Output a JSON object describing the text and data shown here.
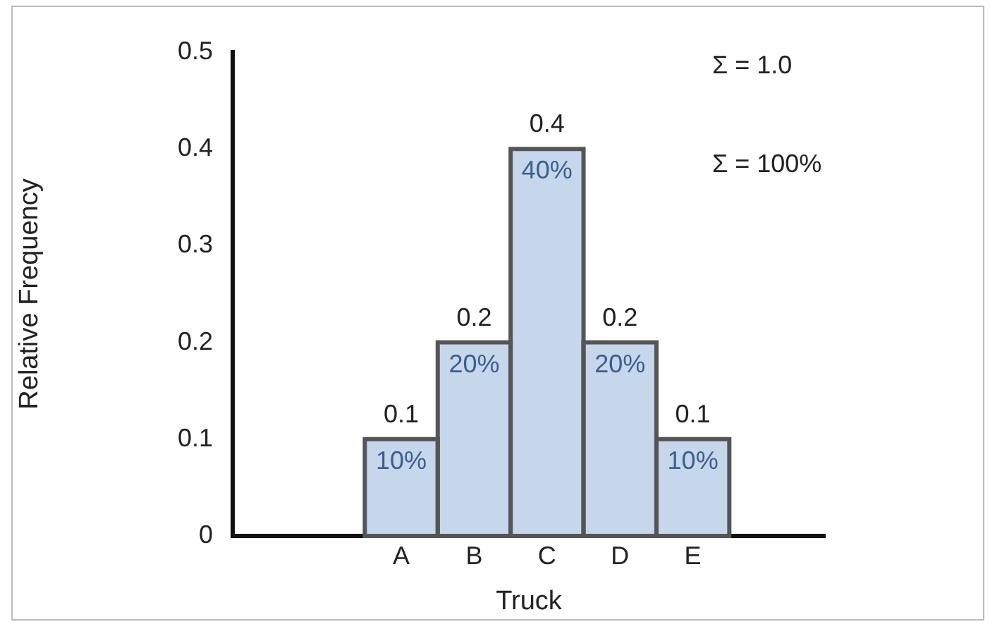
{
  "chart_data": {
    "type": "bar",
    "xlabel": "Truck",
    "ylabel": "Relative Frequency",
    "categories": [
      "A",
      "B",
      "C",
      "D",
      "E"
    ],
    "values": [
      0.1,
      0.2,
      0.4,
      0.2,
      0.1
    ],
    "color": "#c6d7ec",
    "ylim": [
      0,
      0.5
    ],
    "yticks": [
      0,
      0.1,
      0.2,
      0.3,
      0.4,
      0.5
    ],
    "grid": false,
    "legend": false,
    "data_labels": true,
    "annotations": [
      {
        "text": "10%",
        "x": "A",
        "y": 0.1
      },
      {
        "text": "20%",
        "x": "B",
        "y": 0.2
      },
      {
        "text": "40%",
        "x": "C",
        "y": 0.4
      },
      {
        "text": "20%",
        "x": "D",
        "y": 0.2
      },
      {
        "text": "10%",
        "x": "E",
        "y": 0.1
      },
      "Σ = 1.0",
      "Σ = 100%"
    ]
  }
}
